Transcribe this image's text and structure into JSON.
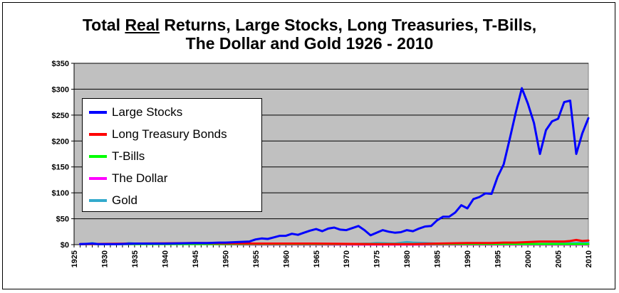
{
  "title": {
    "line1_pre": "Total ",
    "line1_underlined": "Real",
    "line1_post": " Returns, Large Stocks, Long Treasuries, T-Bills,",
    "line2": "The Dollar and Gold 1926 - 2010"
  },
  "chart_data": {
    "type": "line",
    "title": "Total Real Returns, Large Stocks, Long Treasuries, T-Bills, The Dollar and Gold 1926 - 2010",
    "xlabel": "",
    "ylabel": "",
    "xlim": [
      1925,
      2010
    ],
    "ylim": [
      0,
      350
    ],
    "x_ticks": [
      "1925",
      "1930",
      "1935",
      "1940",
      "1945",
      "1950",
      "1955",
      "1960",
      "1965",
      "1970",
      "1975",
      "1980",
      "1985",
      "1990",
      "1995",
      "2000",
      "2005",
      "2010"
    ],
    "y_ticks": [
      "$0",
      "$50",
      "$100",
      "$150",
      "$200",
      "$250",
      "$300",
      "$350"
    ],
    "grid": "horizontal",
    "background_color": "#c0c0c0",
    "legend_position": "left",
    "series": [
      {
        "name": "Large Stocks",
        "color": "#0000ff",
        "x": [
          1926,
          1928,
          1929,
          1930,
          1932,
          1935,
          1937,
          1940,
          1945,
          1947,
          1949,
          1950,
          1952,
          1954,
          1955,
          1956,
          1957,
          1958,
          1959,
          1960,
          1961,
          1962,
          1963,
          1964,
          1965,
          1966,
          1967,
          1968,
          1969,
          1970,
          1971,
          1972,
          1973,
          1974,
          1975,
          1976,
          1977,
          1978,
          1979,
          1980,
          1981,
          1982,
          1983,
          1984,
          1985,
          1986,
          1987,
          1988,
          1989,
          1990,
          1991,
          1992,
          1993,
          1994,
          1995,
          1996,
          1997,
          1998,
          1999,
          2000,
          2001,
          2002,
          2003,
          2004,
          2005,
          2006,
          2007,
          2008,
          2009,
          2010
        ],
        "y": [
          1,
          2,
          1,
          1,
          1,
          2,
          2,
          2,
          3,
          3,
          4,
          4,
          5,
          6,
          10,
          12,
          11,
          14,
          17,
          17,
          21,
          19,
          23,
          27,
          30,
          26,
          31,
          33,
          29,
          28,
          32,
          36,
          28,
          18,
          23,
          28,
          25,
          23,
          24,
          28,
          26,
          31,
          35,
          36,
          47,
          54,
          54,
          62,
          76,
          70,
          88,
          92,
          99,
          98,
          131,
          155,
          204,
          255,
          302,
          272,
          235,
          175,
          221,
          238,
          243,
          275,
          278,
          175,
          215,
          244
        ]
      },
      {
        "name": "Long Treasury Bonds",
        "color": "#ff0000",
        "x": [
          1926,
          1935,
          1945,
          1955,
          1965,
          1975,
          1981,
          1985,
          1990,
          1994,
          1996,
          1998,
          2000,
          2002,
          2004,
          2006,
          2007,
          2008,
          2009,
          2010
        ],
        "y": [
          1,
          2,
          3,
          2,
          2,
          1,
          1,
          2,
          3,
          3,
          4,
          4,
          5,
          6,
          6,
          6,
          7,
          9,
          7,
          8
        ]
      },
      {
        "name": "T-Bills",
        "color": "#00ff00",
        "x": [
          1926,
          1935,
          1945,
          1955,
          1965,
          1975,
          1985,
          1995,
          2005,
          2010
        ],
        "y": [
          1,
          1,
          1,
          1,
          1,
          1,
          1,
          1,
          1,
          1
        ]
      },
      {
        "name": "The Dollar",
        "color": "#ff00ff",
        "x": [
          1926,
          1933,
          1945,
          1955,
          1965,
          1975,
          1980,
          1985,
          1995,
          2010
        ],
        "y": [
          1,
          1,
          1,
          0,
          0,
          0,
          0,
          0,
          0,
          0
        ]
      },
      {
        "name": "Gold",
        "color": "#33aacc",
        "x": [
          1926,
          1927,
          1928,
          1929,
          1933,
          1934,
          1935,
          1945,
          1955,
          1965,
          1970,
          1974,
          1975,
          1978,
          1980,
          1981,
          1983,
          1985,
          1988,
          1990,
          1995,
          2000,
          2005,
          2007,
          2008,
          2009,
          2010
        ],
        "y": [
          0.5,
          1,
          3,
          1,
          1,
          3,
          2,
          2,
          1,
          1,
          1,
          2,
          3,
          2,
          5,
          4,
          3,
          2,
          2,
          2,
          2,
          1,
          2,
          3,
          3,
          4,
          4
        ]
      }
    ]
  }
}
